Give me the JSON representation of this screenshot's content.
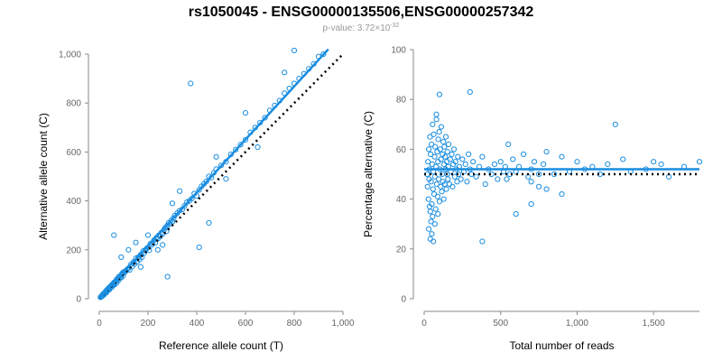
{
  "title": "rs1050045 - ENSG00000135506,ENSG00000257342",
  "subtitle": {
    "prefix": "p-value: 3.72×10",
    "exponent": "-32"
  },
  "colors": {
    "points": "#1a8de0",
    "fit_line": "#1a8de0",
    "reference_line": "#000000"
  },
  "chart_data": [
    {
      "type": "scatter",
      "xlabel": "Reference allele count (T)",
      "ylabel": "Alternative allele count (C)",
      "xlim": [
        0,
        1000
      ],
      "ylim": [
        0,
        1000
      ],
      "xticks": [
        0,
        200,
        400,
        600,
        800,
        1000
      ],
      "xtick_labels": [
        "0",
        "200",
        "400",
        "600",
        "800",
        "1,000"
      ],
      "yticks": [
        0,
        200,
        400,
        600,
        800,
        1000
      ],
      "ytick_labels": [
        "0",
        "200",
        "400",
        "600",
        "800",
        "1,000"
      ],
      "fit_line": {
        "x": [
          0,
          940
        ],
        "y": [
          0,
          1020
        ]
      },
      "reference_line": {
        "x": [
          0,
          1000
        ],
        "y": [
          0,
          1000
        ]
      },
      "points": [
        [
          5,
          6
        ],
        [
          8,
          9
        ],
        [
          10,
          12
        ],
        [
          12,
          10
        ],
        [
          15,
          18
        ],
        [
          18,
          20
        ],
        [
          20,
          17
        ],
        [
          22,
          25
        ],
        [
          25,
          28
        ],
        [
          28,
          24
        ],
        [
          30,
          35
        ],
        [
          32,
          30
        ],
        [
          35,
          40
        ],
        [
          38,
          36
        ],
        [
          40,
          45
        ],
        [
          42,
          38
        ],
        [
          45,
          50
        ],
        [
          48,
          46
        ],
        [
          50,
          55
        ],
        [
          52,
          48
        ],
        [
          55,
          60
        ],
        [
          58,
          58
        ],
        [
          60,
          66
        ],
        [
          62,
          57
        ],
        [
          65,
          70
        ],
        [
          68,
          72
        ],
        [
          70,
          64
        ],
        [
          72,
          80
        ],
        [
          75,
          78
        ],
        [
          78,
          74
        ],
        [
          80,
          90
        ],
        [
          82,
          85
        ],
        [
          85,
          88
        ],
        [
          88,
          95
        ],
        [
          90,
          86
        ],
        [
          92,
          100
        ],
        [
          95,
          105
        ],
        [
          98,
          94
        ],
        [
          100,
          110
        ],
        [
          105,
          108
        ],
        [
          110,
          115
        ],
        [
          115,
          120
        ],
        [
          120,
          125
        ],
        [
          125,
          118
        ],
        [
          130,
          140
        ],
        [
          135,
          132
        ],
        [
          140,
          150
        ],
        [
          145,
          142
        ],
        [
          150,
          165
        ],
        [
          155,
          150
        ],
        [
          160,
          170
        ],
        [
          165,
          160
        ],
        [
          170,
          180
        ],
        [
          175,
          170
        ],
        [
          180,
          195
        ],
        [
          185,
          188
        ],
        [
          190,
          200
        ],
        [
          195,
          205
        ],
        [
          200,
          210
        ],
        [
          205,
          198
        ],
        [
          210,
          225
        ],
        [
          215,
          220
        ],
        [
          220,
          230
        ],
        [
          225,
          240
        ],
        [
          230,
          228
        ],
        [
          235,
          250
        ],
        [
          240,
          245
        ],
        [
          245,
          260
        ],
        [
          250,
          255
        ],
        [
          255,
          270
        ],
        [
          260,
          265
        ],
        [
          265,
          280
        ],
        [
          270,
          290
        ],
        [
          275,
          275
        ],
        [
          280,
          300
        ],
        [
          285,
          310
        ],
        [
          290,
          305
        ],
        [
          295,
          320
        ],
        [
          300,
          315
        ],
        [
          305,
          330
        ],
        [
          310,
          340
        ],
        [
          320,
          350
        ],
        [
          330,
          360
        ],
        [
          340,
          365
        ],
        [
          350,
          380
        ],
        [
          360,
          395
        ],
        [
          370,
          400
        ],
        [
          380,
          410
        ],
        [
          390,
          430
        ],
        [
          400,
          420
        ],
        [
          410,
          445
        ],
        [
          420,
          460
        ],
        [
          430,
          470
        ],
        [
          440,
          480
        ],
        [
          450,
          500
        ],
        [
          460,
          495
        ],
        [
          470,
          515
        ],
        [
          480,
          530
        ],
        [
          500,
          545
        ],
        [
          520,
          560
        ],
        [
          540,
          590
        ],
        [
          560,
          610
        ],
        [
          580,
          630
        ],
        [
          600,
          650
        ],
        [
          620,
          680
        ],
        [
          640,
          700
        ],
        [
          660,
          720
        ],
        [
          680,
          740
        ],
        [
          700,
          770
        ],
        [
          720,
          790
        ],
        [
          740,
          810
        ],
        [
          760,
          840
        ],
        [
          780,
          860
        ],
        [
          800,
          880
        ],
        [
          820,
          900
        ],
        [
          840,
          920
        ],
        [
          860,
          940
        ],
        [
          880,
          960
        ],
        [
          900,
          990
        ],
        [
          920,
          1000
        ],
        [
          60,
          260
        ],
        [
          280,
          90
        ],
        [
          375,
          880
        ],
        [
          410,
          210
        ],
        [
          450,
          310
        ],
        [
          800,
          1015
        ],
        [
          760,
          925
        ],
        [
          480,
          580
        ],
        [
          520,
          490
        ],
        [
          650,
          620
        ],
        [
          600,
          760
        ],
        [
          330,
          440
        ],
        [
          150,
          230
        ],
        [
          120,
          200
        ],
        [
          90,
          170
        ],
        [
          200,
          260
        ],
        [
          240,
          200
        ],
        [
          170,
          130
        ],
        [
          260,
          220
        ],
        [
          300,
          390
        ]
      ]
    },
    {
      "type": "scatter",
      "xlabel": "Total number of reads",
      "ylabel": "Percentage alternative (C)",
      "xlim": [
        0,
        1800
      ],
      "ylim": [
        0,
        100
      ],
      "xticks": [
        0,
        500,
        1000,
        1500
      ],
      "xtick_labels": [
        "0",
        "500",
        "1,000",
        "1,500"
      ],
      "yticks": [
        0,
        20,
        40,
        60,
        80,
        100
      ],
      "ytick_labels": [
        "0",
        "20",
        "40",
        "60",
        "80",
        "100"
      ],
      "fit_line": {
        "x": [
          0,
          1800
        ],
        "y": [
          52,
          52
        ]
      },
      "reference_line": {
        "x": [
          0,
          1800
        ],
        "y": [
          50,
          50
        ]
      },
      "points": [
        [
          20,
          50
        ],
        [
          22,
          45
        ],
        [
          25,
          55
        ],
        [
          28,
          40
        ],
        [
          30,
          60
        ],
        [
          32,
          48
        ],
        [
          35,
          52
        ],
        [
          38,
          65
        ],
        [
          40,
          35
        ],
        [
          42,
          58
        ],
        [
          45,
          47
        ],
        [
          48,
          62
        ],
        [
          50,
          38
        ],
        [
          52,
          54
        ],
        [
          55,
          70
        ],
        [
          58,
          44
        ],
        [
          60,
          51
        ],
        [
          62,
          66
        ],
        [
          65,
          42
        ],
        [
          68,
          57
        ],
        [
          70,
          49
        ],
        [
          72,
          61
        ],
        [
          75,
          36
        ],
        [
          78,
          53
        ],
        [
          80,
          72
        ],
        [
          82,
          46
        ],
        [
          85,
          59
        ],
        [
          88,
          41
        ],
        [
          90,
          55
        ],
        [
          92,
          64
        ],
        [
          95,
          48
        ],
        [
          98,
          67
        ],
        [
          100,
          39
        ],
        [
          102,
          52
        ],
        [
          105,
          60
        ],
        [
          108,
          45
        ],
        [
          110,
          56
        ],
        [
          112,
          69
        ],
        [
          115,
          43
        ],
        [
          118,
          50
        ],
        [
          120,
          58
        ],
        [
          122,
          47
        ],
        [
          125,
          63
        ],
        [
          128,
          40
        ],
        [
          130,
          54
        ],
        [
          132,
          61
        ],
        [
          135,
          46
        ],
        [
          138,
          57
        ],
        [
          140,
          52
        ],
        [
          142,
          65
        ],
        [
          145,
          44
        ],
        [
          148,
          55
        ],
        [
          150,
          50
        ],
        [
          152,
          59
        ],
        [
          155,
          48
        ],
        [
          158,
          53
        ],
        [
          160,
          62
        ],
        [
          165,
          46
        ],
        [
          170,
          56
        ],
        [
          175,
          51
        ],
        [
          180,
          58
        ],
        [
          185,
          45
        ],
        [
          190,
          54
        ],
        [
          195,
          60
        ],
        [
          200,
          49
        ],
        [
          205,
          55
        ],
        [
          210,
          52
        ],
        [
          215,
          47
        ],
        [
          220,
          57
        ],
        [
          225,
          50
        ],
        [
          230,
          53
        ],
        [
          240,
          48
        ],
        [
          250,
          56
        ],
        [
          260,
          51
        ],
        [
          270,
          54
        ],
        [
          280,
          47
        ],
        [
          290,
          58
        ],
        [
          300,
          52
        ],
        [
          310,
          50
        ],
        [
          320,
          55
        ],
        [
          340,
          49
        ],
        [
          360,
          53
        ],
        [
          380,
          57
        ],
        [
          400,
          46
        ],
        [
          420,
          52
        ],
        [
          440,
          50
        ],
        [
          460,
          54
        ],
        [
          480,
          48
        ],
        [
          500,
          55
        ],
        [
          520,
          51
        ],
        [
          30,
          28
        ],
        [
          40,
          24
        ],
        [
          60,
          23
        ],
        [
          50,
          26
        ],
        [
          70,
          30
        ],
        [
          55,
          33
        ],
        [
          45,
          31
        ],
        [
          90,
          34
        ],
        [
          35,
          37
        ],
        [
          80,
          74
        ],
        [
          100,
          82
        ],
        [
          300,
          83
        ],
        [
          380,
          23
        ],
        [
          600,
          34
        ],
        [
          700,
          38
        ],
        [
          1250,
          70
        ],
        [
          1800,
          55
        ],
        [
          1700,
          53
        ],
        [
          1550,
          54
        ],
        [
          1450,
          52
        ],
        [
          1350,
          51
        ],
        [
          1300,
          56
        ],
        [
          1200,
          54
        ],
        [
          1150,
          50
        ],
        [
          1100,
          53
        ],
        [
          1050,
          52
        ],
        [
          1000,
          55
        ],
        [
          950,
          51
        ],
        [
          900,
          57
        ],
        [
          850,
          50
        ],
        [
          800,
          59
        ],
        [
          780,
          54
        ],
        [
          750,
          50
        ],
        [
          720,
          55
        ],
        [
          700,
          52
        ],
        [
          680,
          49
        ],
        [
          650,
          58
        ],
        [
          620,
          53
        ],
        [
          600,
          51
        ],
        [
          580,
          56
        ],
        [
          560,
          50
        ],
        [
          550,
          62
        ],
        [
          540,
          48
        ],
        [
          530,
          53
        ],
        [
          900,
          42
        ],
        [
          800,
          44
        ],
        [
          750,
          45
        ],
        [
          700,
          47
        ],
        [
          1600,
          49
        ],
        [
          1500,
          55
        ]
      ]
    }
  ]
}
